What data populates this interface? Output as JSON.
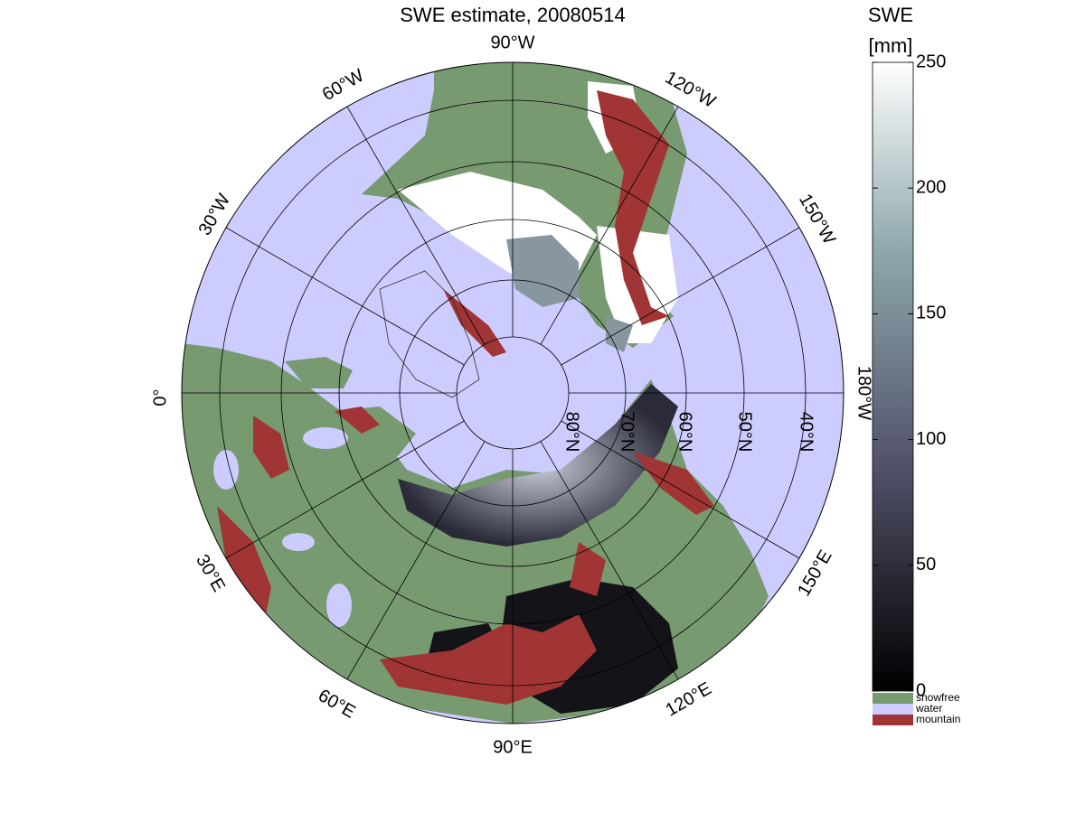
{
  "title": "SWE estimate, 20080514",
  "map": {
    "longitude_labels": [
      "90°W",
      "60°W",
      "30°W",
      "0°",
      "30°E",
      "60°E",
      "90°E",
      "120°E",
      "150°E",
      "180°W",
      "150°W",
      "120°W"
    ],
    "latitude_labels": [
      "80°N",
      "70°N",
      "60°N",
      "50°N",
      "40°N"
    ]
  },
  "colorbar": {
    "title": [
      "SWE",
      "[mm]"
    ],
    "range": [
      0,
      250
    ],
    "ticks": [
      0,
      50,
      100,
      150,
      200,
      250
    ]
  },
  "legend": [
    {
      "name": "snowfree",
      "color": "#779a70"
    },
    {
      "name": "water",
      "color": "#ccccff"
    },
    {
      "name": "mountain",
      "color": "#a13434"
    }
  ]
}
